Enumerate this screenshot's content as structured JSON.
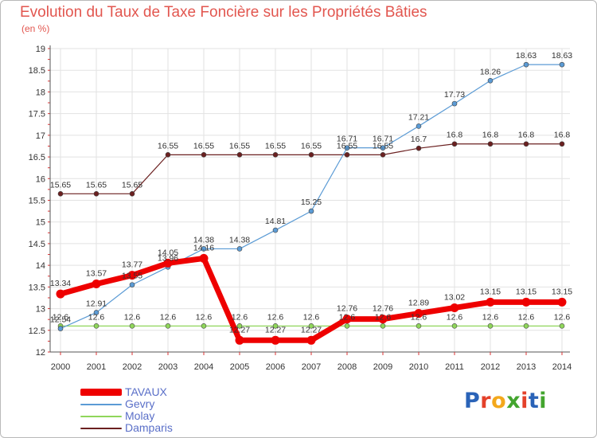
{
  "title": "Evolution du Taux de Taxe Foncière sur les Propriétés Bâties",
  "subtitle": "(en %)",
  "logo": {
    "text": "Proxiti",
    "colors": [
      "#2a63b8",
      "#e4412a",
      "#f3a81c",
      "#43a52e",
      "#e4412a",
      "#2a63b8",
      "#43a52e"
    ]
  },
  "chart_data": {
    "type": "line",
    "x": [
      "2000",
      "2001",
      "2002",
      "2003",
      "2004",
      "2005",
      "2006",
      "2007",
      "2008",
      "2009",
      "2010",
      "2011",
      "2012",
      "2013",
      "2014"
    ],
    "ylim": [
      12,
      19
    ],
    "yticks": [
      "12",
      "12.5",
      "13",
      "13.5",
      "14",
      "14.5",
      "15",
      "15.5",
      "16",
      "16.5",
      "17",
      "17.5",
      "18",
      "18.5",
      "19"
    ],
    "grid": true,
    "legend_position": "bottom-left",
    "series": [
      {
        "name": "TAVAUX",
        "color": "#ee0000",
        "values": [
          13.34,
          13.57,
          13.77,
          14.05,
          14.16,
          12.27,
          12.27,
          12.27,
          12.76,
          12.76,
          12.89,
          13.02,
          13.15,
          13.15,
          13.15
        ],
        "labels": [
          "13.34",
          "13.57",
          "13.77",
          "14.05",
          "14.16",
          "12.27",
          "12.27",
          "12.27",
          "12.76",
          "12.76",
          "12.89",
          "13.02",
          "13.15",
          "13.15",
          "13.15"
        ]
      },
      {
        "name": "Gevry",
        "color": "#5b9bd5",
        "values": [
          12.54,
          12.91,
          13.55,
          13.96,
          14.38,
          14.38,
          14.81,
          15.25,
          16.71,
          16.71,
          17.21,
          17.73,
          18.26,
          18.63,
          18.63
        ],
        "labels": [
          "12.54",
          "12.91",
          "13.55",
          "13.96",
          "14.38",
          "14.38",
          "14.81",
          "15.25",
          "16.71",
          "16.71",
          "17.21",
          "17.73",
          "18.26",
          "18.63",
          "18.63"
        ]
      },
      {
        "name": "Molay",
        "color": "#8fd65a",
        "values": [
          12.6,
          12.6,
          12.6,
          12.6,
          12.6,
          12.6,
          12.6,
          12.6,
          12.6,
          12.6,
          12.6,
          12.6,
          12.6,
          12.6,
          12.6
        ],
        "labels": [
          "12.6",
          "12.6",
          "12.6",
          "12.6",
          "12.6",
          "12.6",
          "12.6",
          "12.6",
          "12.6",
          "12.6",
          "12.6",
          "12.6",
          "12.6",
          "12.6",
          "12.6"
        ]
      },
      {
        "name": "Damparis",
        "color": "#6b2020",
        "values": [
          15.65,
          15.65,
          15.65,
          16.55,
          16.55,
          16.55,
          16.55,
          16.55,
          16.55,
          16.55,
          16.7,
          16.8,
          16.8,
          16.8,
          16.8
        ],
        "labels": [
          "15.65",
          "15.65",
          "15.65",
          "16.55",
          "16.55",
          "16.55",
          "16.55",
          "16.55",
          "16.55",
          "16.55",
          "16.7",
          "16.8",
          "16.8",
          "16.8",
          "16.8"
        ]
      }
    ]
  }
}
